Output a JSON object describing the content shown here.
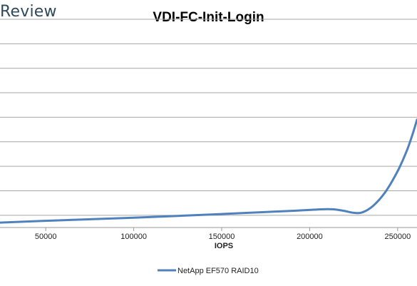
{
  "brand": {
    "text": "Review"
  },
  "chart_data": {
    "type": "line",
    "title": "VDI-FC-Init-Login",
    "xlabel": "IOPS",
    "ylabel": "",
    "x_ticks": [
      50000,
      100000,
      150000,
      200000,
      250000
    ],
    "x_tick_labels": [
      "50000",
      "100000",
      "150000",
      "200000",
      "250000"
    ],
    "xlim": [
      24000,
      261000
    ],
    "ylim": [
      0.5,
      9.0
    ],
    "y_gridlines": [
      1,
      2,
      3,
      4,
      5,
      6,
      7,
      8,
      9
    ],
    "y_tick_labels_visible": false,
    "grid": true,
    "legend_position": "bottom",
    "series": [
      {
        "name": "NetApp EF570 RAID10",
        "color": "#4f81bd",
        "points": [
          [
            24000,
            0.7
          ],
          [
            60000,
            0.8
          ],
          [
            100000,
            0.9
          ],
          [
            150000,
            1.05
          ],
          [
            190000,
            1.18
          ],
          [
            210000,
            1.25
          ],
          [
            218000,
            1.2
          ],
          [
            225000,
            1.1
          ],
          [
            230000,
            1.12
          ],
          [
            236000,
            1.38
          ],
          [
            243000,
            1.95
          ],
          [
            250000,
            2.8
          ],
          [
            255000,
            3.6
          ],
          [
            258000,
            4.2
          ],
          [
            261000,
            4.9
          ]
        ]
      }
    ]
  }
}
